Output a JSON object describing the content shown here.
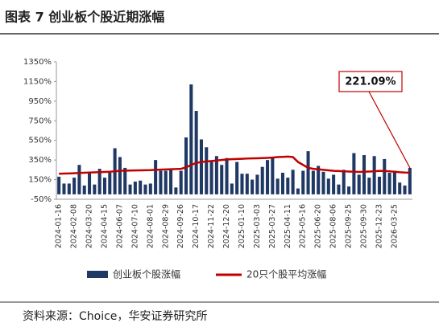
{
  "title": "图表 7 创业板个股近期涨幅",
  "source": "资料来源：Choice，华安证券研究所",
  "chart_data": {
    "type": "bar_line",
    "categories": [
      "2024-01-16",
      null,
      null,
      "2024-02-08",
      null,
      null,
      "2024-03-20",
      null,
      null,
      "2024-04-15",
      null,
      null,
      "2024-06-07",
      null,
      null,
      "2024-07-10",
      null,
      null,
      "2024-08-01",
      null,
      null,
      "2024-08-29",
      null,
      null,
      "2024-09-26",
      null,
      null,
      "2024-10-17",
      null,
      null,
      "2024-11-22",
      null,
      null,
      "2024-12-20",
      null,
      null,
      "2025-01-10",
      null,
      null,
      "2025-03-03",
      null,
      null,
      "2025-03-27",
      null,
      null,
      "2025-04-11",
      null,
      null,
      "2025-05-16",
      null,
      null,
      "2025-06-20",
      null,
      null,
      "2025-08-06",
      null,
      null,
      "2025-09-25",
      null,
      null,
      "2025-09-30",
      null,
      null,
      "2025-12-23",
      null,
      null,
      "2026-03-25",
      null,
      null,
      null
    ],
    "series": [
      {
        "name": "创业板个股涨幅",
        "type": "bar",
        "color": "#1f3864",
        "values": [
          180,
          110,
          110,
          170,
          300,
          90,
          230,
          100,
          260,
          170,
          220,
          470,
          380,
          270,
          100,
          130,
          140,
          100,
          110,
          350,
          240,
          240,
          260,
          70,
          240,
          580,
          1120,
          850,
          560,
          480,
          330,
          390,
          300,
          370,
          110,
          330,
          210,
          210,
          150,
          200,
          280,
          350,
          370,
          160,
          220,
          170,
          250,
          60,
          240,
          440,
          240,
          290,
          230,
          160,
          200,
          100,
          250,
          80,
          420,
          200,
          400,
          170,
          390,
          180,
          360,
          220,
          240,
          120,
          90,
          270
        ]
      },
      {
        "name": "20只个股平均涨幅",
        "type": "line",
        "color": "#c00000",
        "values": [
          210,
          212,
          213,
          215,
          218,
          220,
          222,
          224,
          226,
          228,
          230,
          235,
          240,
          242,
          243,
          244,
          245,
          246,
          247,
          250,
          252,
          254,
          256,
          258,
          260,
          275,
          300,
          320,
          330,
          335,
          340,
          345,
          350,
          355,
          358,
          360,
          362,
          365,
          367,
          368,
          370,
          372,
          375,
          380,
          382,
          385,
          380,
          330,
          300,
          270,
          260,
          255,
          250,
          245,
          240,
          238,
          235,
          232,
          230,
          228,
          230,
          232,
          235,
          240,
          238,
          235,
          230,
          225,
          222,
          221.09
        ]
      }
    ],
    "annotation": "221.09%",
    "ylim": [
      -50,
      1350
    ],
    "yticks": [
      {
        "value": -50,
        "label": "-50%"
      },
      {
        "value": 150,
        "label": "150%"
      },
      {
        "value": 350,
        "label": "350%"
      },
      {
        "value": 550,
        "label": "550%"
      },
      {
        "value": 750,
        "label": "750%"
      },
      {
        "value": 950,
        "label": "950%"
      },
      {
        "value": 1150,
        "label": "1150%"
      },
      {
        "value": 1350,
        "label": "1350%"
      }
    ]
  }
}
